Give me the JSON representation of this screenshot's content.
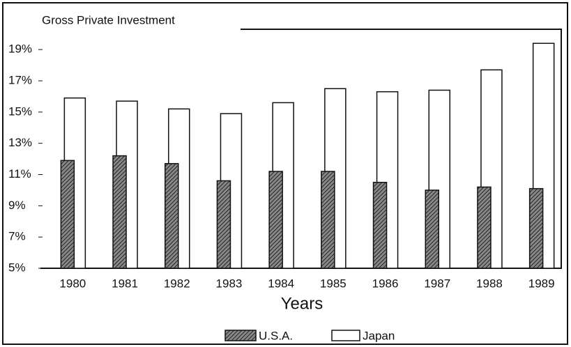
{
  "chart_data": {
    "type": "bar",
    "title": "Gross Private Investment",
    "x_label": "Years",
    "categories": [
      "1980",
      "1981",
      "1982",
      "1983",
      "1984",
      "1985",
      "1986",
      "1987",
      "1988",
      "1989"
    ],
    "series": [
      {
        "name": "U.S.A.",
        "color": "#555555",
        "values": [
          11.9,
          12.2,
          11.7,
          10.6,
          11.2,
          11.2,
          10.5,
          10.0,
          10.2,
          10.1
        ]
      },
      {
        "name": "Japan",
        "color": "#ffffff",
        "values": [
          15.9,
          15.7,
          15.2,
          14.9,
          15.6,
          16.5,
          16.3,
          16.4,
          17.7,
          19.4
        ]
      }
    ],
    "ylim": [
      5,
      20.3
    ],
    "yticks": [
      {
        "value": 5,
        "label": "5%"
      },
      {
        "value": 7,
        "label": "7%"
      },
      {
        "value": 9,
        "label": "9%"
      },
      {
        "value": 11,
        "label": "11%"
      },
      {
        "value": 13,
        "label": "13%"
      },
      {
        "value": 15,
        "label": "15%"
      },
      {
        "value": 17,
        "label": "17%"
      },
      {
        "value": 19,
        "label": "19%"
      }
    ],
    "legend": "bottom"
  }
}
